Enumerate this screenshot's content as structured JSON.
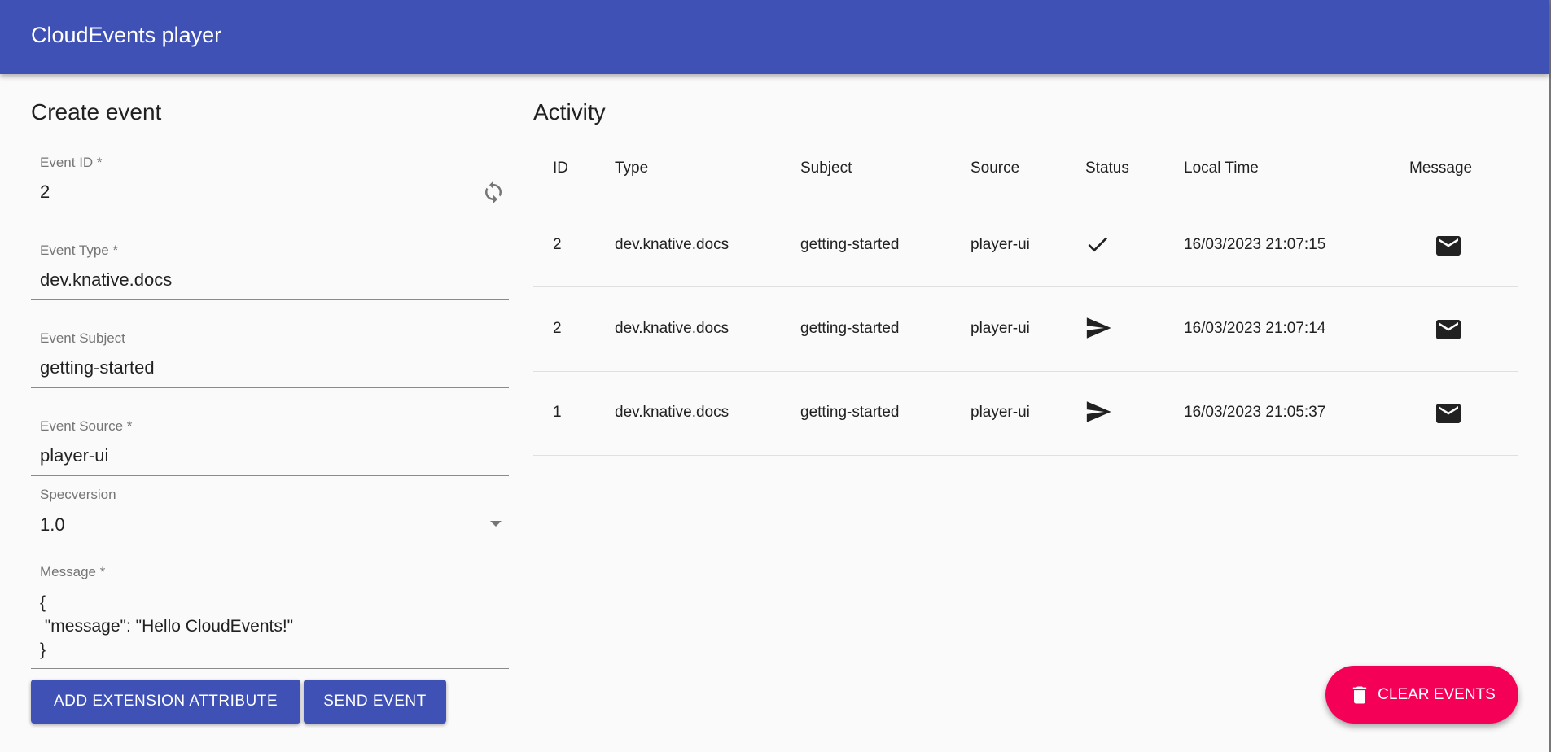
{
  "app": {
    "title": "CloudEvents player",
    "header_color": "#3f51b5"
  },
  "create": {
    "title": "Create event",
    "fields": [
      {
        "label": "Event ID *",
        "value": "2",
        "icon": "refresh-icon"
      },
      {
        "label": "Event Type *",
        "value": "dev.knative.docs"
      },
      {
        "label": "Event Subject",
        "value": "getting-started"
      },
      {
        "label": "Event Source *",
        "value": "player-ui"
      },
      {
        "label": "Specversion",
        "value": "1.0",
        "icon": "dropdown-arrow-icon"
      },
      {
        "label": "Message *",
        "value": "{\n \"message\": \"Hello CloudEvents!\"\n}"
      }
    ],
    "add_extension_label": "ADD EXTENSION ATTRIBUTE",
    "send_label": "SEND EVENT"
  },
  "activity": {
    "title": "Activity",
    "columns": [
      "ID",
      "Type",
      "Subject",
      "Source",
      "Status",
      "Local Time",
      "Message"
    ],
    "rows": [
      {
        "id": "2",
        "type": "dev.knative.docs",
        "subject": "getting-started",
        "source": "player-ui",
        "status": "check-icon",
        "time": "16/03/2023 21:07:15",
        "message": "mail-icon"
      },
      {
        "id": "2",
        "type": "dev.knative.docs",
        "subject": "getting-started",
        "source": "player-ui",
        "status": "send-icon",
        "time": "16/03/2023 21:07:14",
        "message": "mail-icon"
      },
      {
        "id": "1",
        "type": "dev.knative.docs",
        "subject": "getting-started",
        "source": "player-ui",
        "status": "send-icon",
        "time": "16/03/2023 21:05:37",
        "message": "mail-icon"
      }
    ]
  },
  "fab": {
    "label": "CLEAR EVENTS",
    "icon": "trash-icon",
    "color": "#f50057"
  }
}
